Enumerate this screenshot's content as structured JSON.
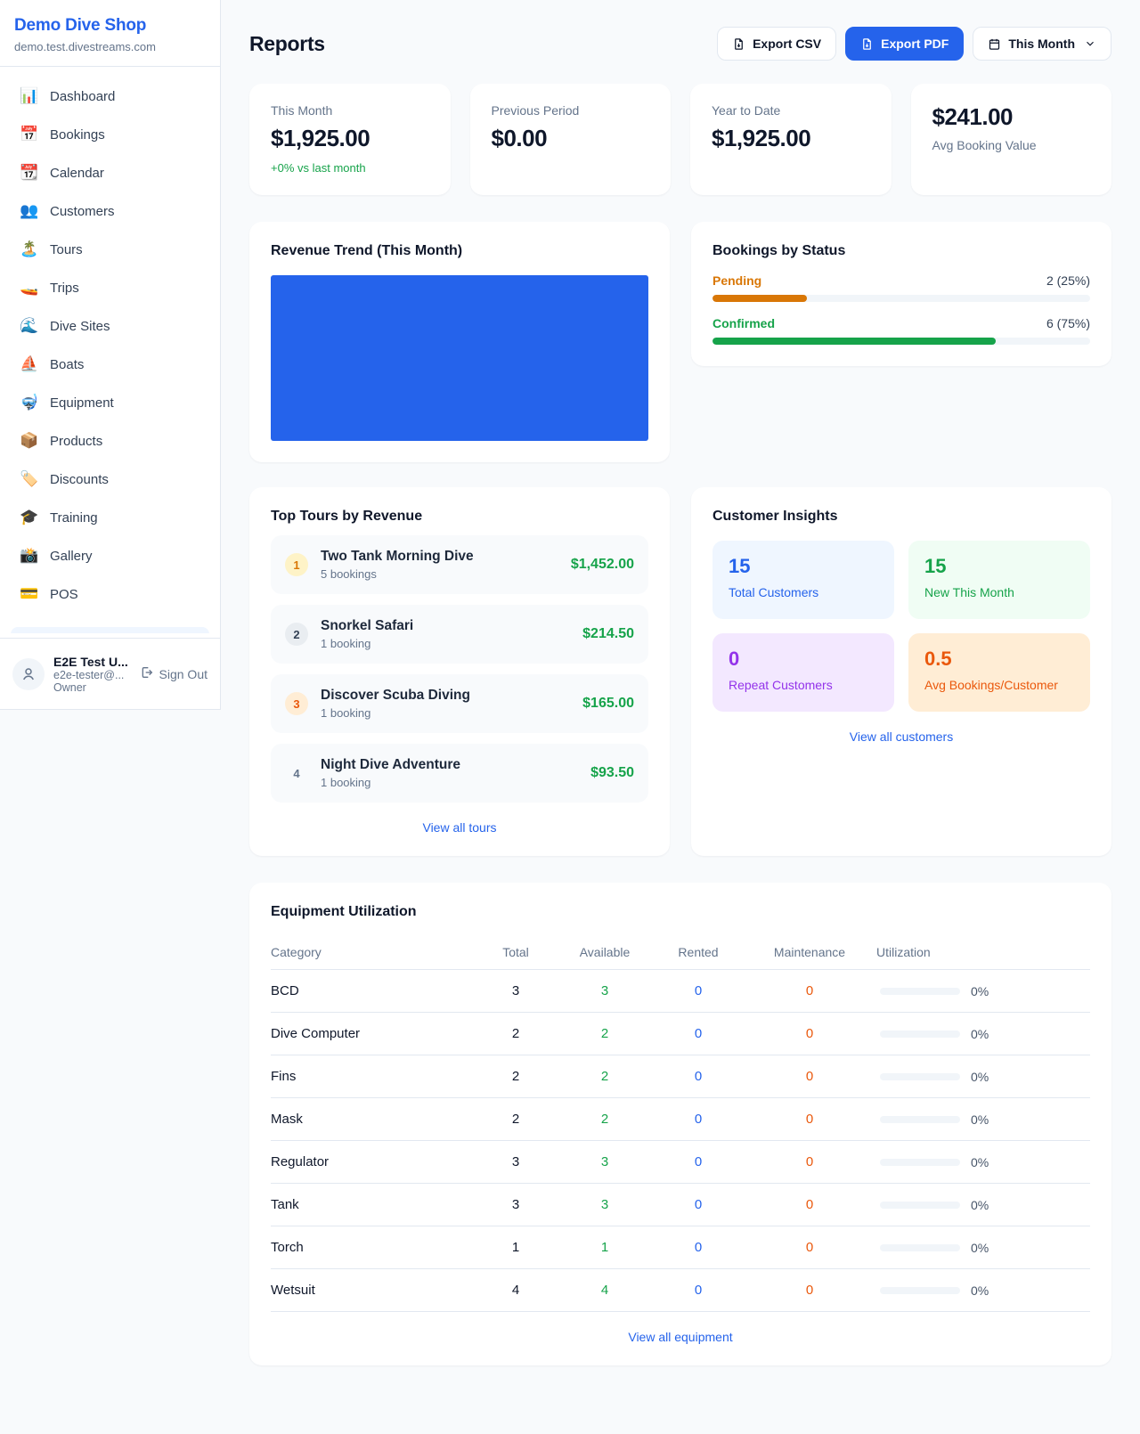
{
  "sidebar": {
    "shop_name": "Demo Dive Shop",
    "shop_domain": "demo.test.divestreams.com",
    "nav": [
      {
        "icon": "bar-chart-icon",
        "emoji": "📊",
        "label": "Dashboard"
      },
      {
        "icon": "calendar-icon",
        "emoji": "📅",
        "label": "Bookings"
      },
      {
        "icon": "tear-off-calendar-icon",
        "emoji": "📆",
        "label": "Calendar"
      },
      {
        "icon": "people-icon",
        "emoji": "👥",
        "label": "Customers"
      },
      {
        "icon": "island-icon",
        "emoji": "🏝️",
        "label": "Tours"
      },
      {
        "icon": "speedboat-icon",
        "emoji": "🚤",
        "label": "Trips"
      },
      {
        "icon": "wave-icon",
        "emoji": "🌊",
        "label": "Dive Sites"
      },
      {
        "icon": "sailboat-icon",
        "emoji": "⛵",
        "label": "Boats"
      },
      {
        "icon": "diving-mask-icon",
        "emoji": "🤿",
        "label": "Equipment"
      },
      {
        "icon": "package-icon",
        "emoji": "📦",
        "label": "Products"
      },
      {
        "icon": "tag-icon",
        "emoji": "🏷️",
        "label": "Discounts"
      },
      {
        "icon": "graduation-cap-icon",
        "emoji": "🎓",
        "label": "Training"
      },
      {
        "icon": "camera-icon",
        "emoji": "📸",
        "label": "Gallery"
      },
      {
        "icon": "credit-card-icon",
        "emoji": "💳",
        "label": "POS"
      }
    ],
    "user": {
      "name": "E2E Test U...",
      "email": "e2e-tester@...",
      "role": "Owner",
      "sign_out_label": "Sign Out"
    }
  },
  "header": {
    "title": "Reports",
    "export_csv_label": "Export CSV",
    "export_pdf_label": "Export PDF",
    "period_label": "This Month"
  },
  "stats": [
    {
      "label": "This Month",
      "value": "$1,925.00",
      "delta": "+0% vs last month",
      "layout": "label-top"
    },
    {
      "label": "Previous Period",
      "value": "$0.00",
      "delta": "",
      "layout": "label-top"
    },
    {
      "label": "Year to Date",
      "value": "$1,925.00",
      "delta": "",
      "layout": "label-top"
    },
    {
      "label": "Avg Booking Value",
      "value": "$241.00",
      "delta": "",
      "layout": "value-top"
    }
  ],
  "revenue_trend": {
    "title": "Revenue Trend (This Month)",
    "chart": {
      "type": "bar",
      "bars": [
        {
          "pct": 100,
          "color": "#2563eb"
        }
      ]
    }
  },
  "bookings_by_status": {
    "title": "Bookings by Status",
    "rows": [
      {
        "label": "Pending",
        "count_text": "2 (25%)",
        "pct": 25,
        "color": "#d97706"
      },
      {
        "label": "Confirmed",
        "count_text": "6 (75%)",
        "pct": 75,
        "color": "#16a34a"
      }
    ]
  },
  "top_tours": {
    "title": "Top Tours by Revenue",
    "view_all_label": "View all tours",
    "items": [
      {
        "rank": "1",
        "name": "Two Tank Morning Dive",
        "bookings": "5 bookings",
        "revenue": "$1,452.00",
        "badge_bg": "#fef3c7",
        "badge_color": "#d97706"
      },
      {
        "rank": "2",
        "name": "Snorkel Safari",
        "bookings": "1 booking",
        "revenue": "$214.50",
        "badge_bg": "#e9edf1",
        "badge_color": "#334155"
      },
      {
        "rank": "3",
        "name": "Discover Scuba Diving",
        "bookings": "1 booking",
        "revenue": "$165.00",
        "badge_bg": "#ffedd5",
        "badge_color": "#ea580c"
      },
      {
        "rank": "4",
        "name": "Night Dive Adventure",
        "bookings": "1 booking",
        "revenue": "$93.50",
        "badge_bg": "transparent",
        "badge_color": "#64748b"
      }
    ]
  },
  "customer_insights": {
    "title": "Customer Insights",
    "view_all_label": "View all customers",
    "tiles": [
      {
        "value": "15",
        "label": "Total Customers",
        "bg": "#eff6ff",
        "color": "#2563eb"
      },
      {
        "value": "15",
        "label": "New This Month",
        "bg": "#f0fdf4",
        "color": "#16a34a"
      },
      {
        "value": "0",
        "label": "Repeat Customers",
        "bg": "#f3e8ff",
        "color": "#9333ea"
      },
      {
        "value": "0.5",
        "label": "Avg Bookings/Customer",
        "bg": "#ffedd5",
        "color": "#ea580c"
      }
    ]
  },
  "equipment": {
    "title": "Equipment Utilization",
    "view_all_label": "View all equipment",
    "columns": [
      "Category",
      "Total",
      "Available",
      "Rented",
      "Maintenance",
      "Utilization"
    ],
    "rows": [
      {
        "category": "BCD",
        "total": "3",
        "available": "3",
        "rented": "0",
        "maintenance": "0",
        "utilization_pct": 0,
        "utilization_label": "0%"
      },
      {
        "category": "Dive Computer",
        "total": "2",
        "available": "2",
        "rented": "0",
        "maintenance": "0",
        "utilization_pct": 0,
        "utilization_label": "0%"
      },
      {
        "category": "Fins",
        "total": "2",
        "available": "2",
        "rented": "0",
        "maintenance": "0",
        "utilization_pct": 0,
        "utilization_label": "0%"
      },
      {
        "category": "Mask",
        "total": "2",
        "available": "2",
        "rented": "0",
        "maintenance": "0",
        "utilization_pct": 0,
        "utilization_label": "0%"
      },
      {
        "category": "Regulator",
        "total": "3",
        "available": "3",
        "rented": "0",
        "maintenance": "0",
        "utilization_pct": 0,
        "utilization_label": "0%"
      },
      {
        "category": "Tank",
        "total": "3",
        "available": "3",
        "rented": "0",
        "maintenance": "0",
        "utilization_pct": 0,
        "utilization_label": "0%"
      },
      {
        "category": "Torch",
        "total": "1",
        "available": "1",
        "rented": "0",
        "maintenance": "0",
        "utilization_pct": 0,
        "utilization_label": "0%"
      },
      {
        "category": "Wetsuit",
        "total": "4",
        "available": "4",
        "rented": "0",
        "maintenance": "0",
        "utilization_pct": 0,
        "utilization_label": "0%"
      }
    ]
  },
  "colors": {
    "accent_blue": "#2563eb",
    "green": "#16a34a",
    "orange_pending": "#d97706",
    "orange_deep": "#ea580c",
    "purple": "#9333ea",
    "page_bg": "#f8fafc",
    "border": "#e2e8f0"
  }
}
